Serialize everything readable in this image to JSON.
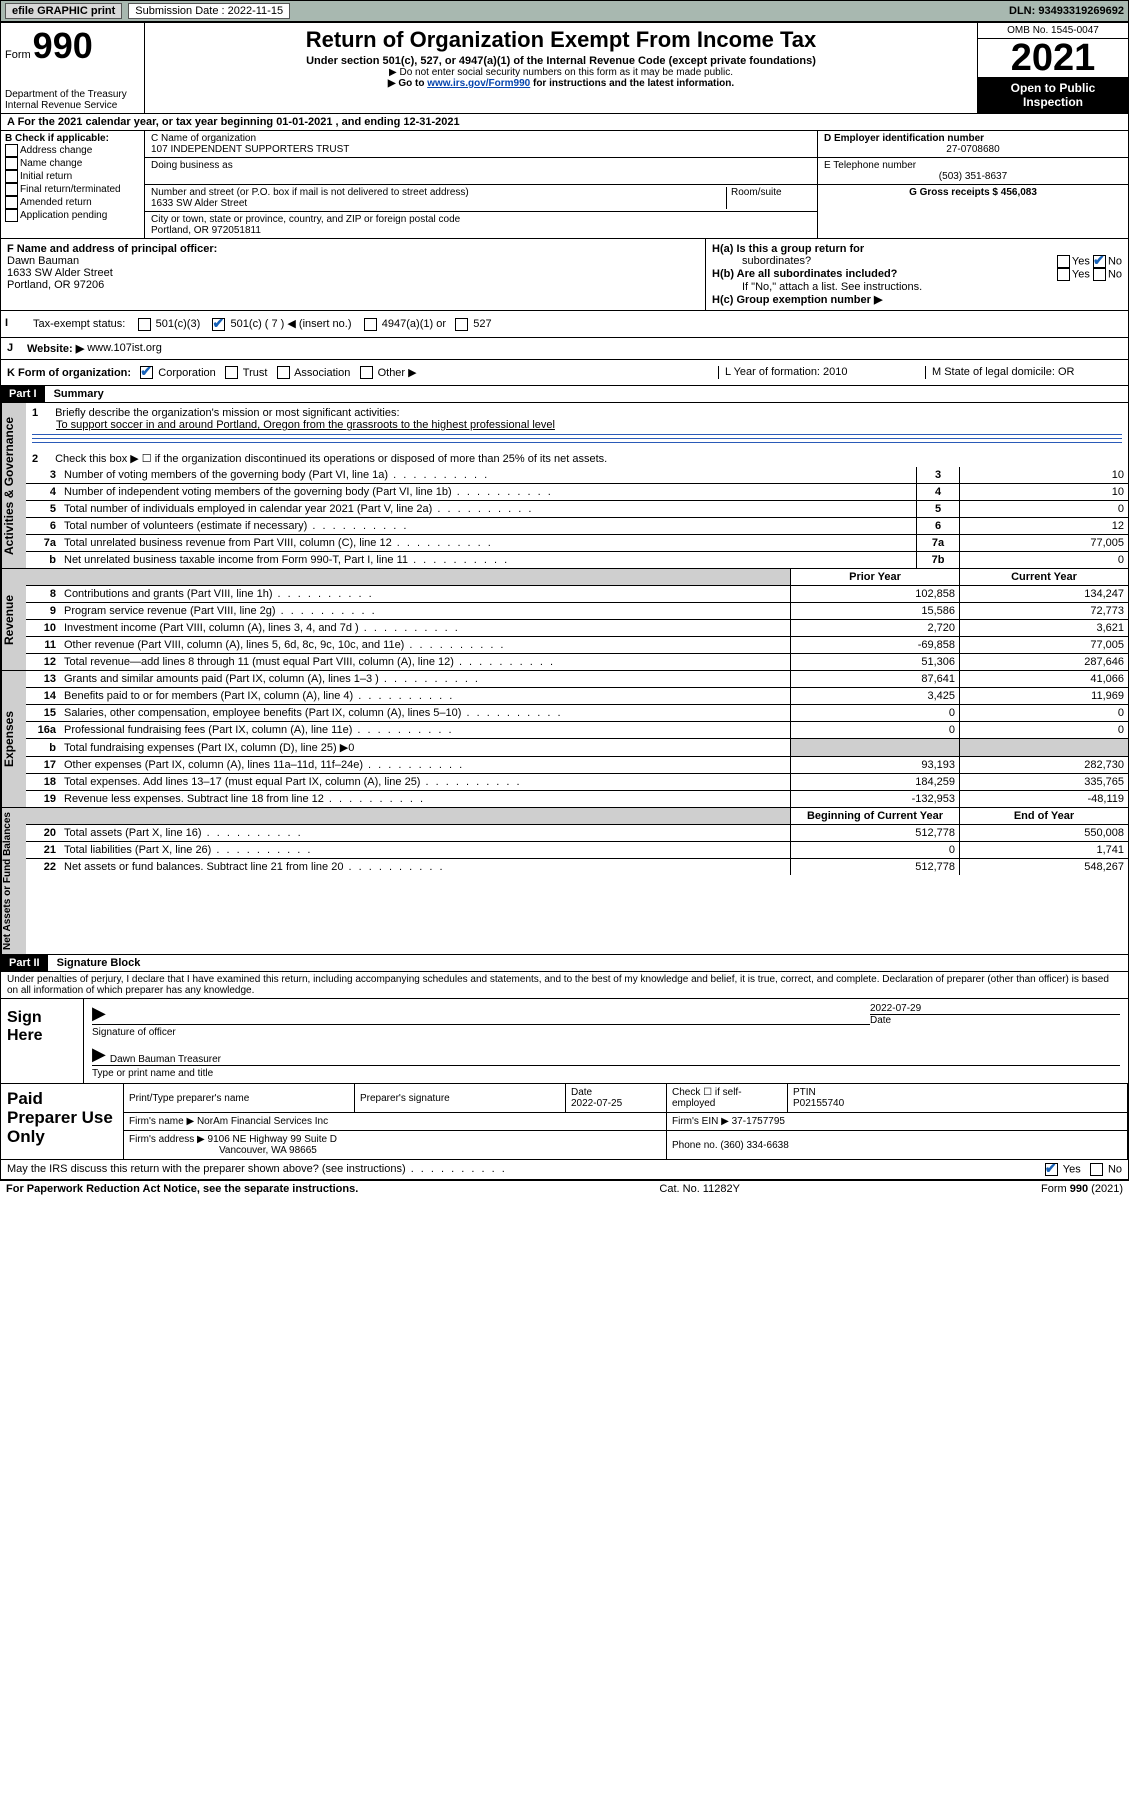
{
  "topbar": {
    "efile": "efile GRAPHIC print",
    "submission_label": "Submission Date : 2022-11-15",
    "dln": "DLN: 93493319269692"
  },
  "header": {
    "form_word": "Form",
    "form_num": "990",
    "dept": "Department of the Treasury",
    "irs": "Internal Revenue Service",
    "title": "Return of Organization Exempt From Income Tax",
    "sub1": "Under section 501(c), 527, or 4947(a)(1) of the Internal Revenue Code (except private foundations)",
    "sub2": "▶ Do not enter social security numbers on this form as it may be made public.",
    "sub3_pre": "▶ Go to ",
    "sub3_link": "www.irs.gov/Form990",
    "sub3_post": " for instructions and the latest information.",
    "omb": "OMB No. 1545-0047",
    "year": "2021",
    "otp": "Open to Public Inspection"
  },
  "row_a": "A For the 2021 calendar year, or tax year beginning 01-01-2021    , and ending 12-31-2021",
  "col_b": {
    "title": "B Check if applicable:",
    "opts": [
      "Address change",
      "Name change",
      "Initial return",
      "Final return/terminated",
      "Amended return",
      "Application pending"
    ]
  },
  "col_c": {
    "c_label": "C Name of organization",
    "c_name": "107 INDEPENDENT SUPPORTERS TRUST",
    "dba_label": "Doing business as",
    "addr_label": "Number and street (or P.O. box if mail is not delivered to street address)",
    "room_label": "Room/suite",
    "addr": "1633 SW Alder Street",
    "city_label": "City or town, state or province, country, and ZIP or foreign postal code",
    "city": "Portland, OR  972051811"
  },
  "col_de": {
    "d_label": "D Employer identification number",
    "d_val": "27-0708680",
    "e_label": "E Telephone number",
    "e_val": "(503) 351-8637",
    "g_label": "G Gross receipts $ 456,083"
  },
  "fj": {
    "f_label": "F  Name and address of principal officer:",
    "f_name": "Dawn Bauman",
    "f_addr1": "1633 SW Alder Street",
    "f_addr2": "Portland, OR  97206",
    "i_label": "Tax-exempt status:",
    "i_opts": {
      "a": "501(c)(3)",
      "b": "501(c) ( 7 ) ◀ (insert no.)",
      "c": "4947(a)(1) or",
      "d": "527"
    },
    "j_label": "Website: ▶",
    "j_val": "www.107ist.org",
    "ha_label": "H(a)  Is this a group return for",
    "ha_sub": "subordinates?",
    "hb_label": "H(b)  Are all subordinates included?",
    "hb_note": "If \"No,\" attach a list. See instructions.",
    "hc_label": "H(c)  Group exemption number ▶",
    "yes": "Yes",
    "no": "No"
  },
  "row_k": {
    "k_label": "K Form of organization:",
    "opts": [
      "Corporation",
      "Trust",
      "Association",
      "Other ▶"
    ],
    "l_label": "L Year of formation: 2010",
    "m_label": "M State of legal domicile: OR"
  },
  "part1": {
    "label": "Part I",
    "title": "Summary",
    "l1a": "Briefly describe the organization's mission or most significant activities:",
    "l1b": "To support soccer in and around Portland, Oregon from the grassroots to the highest professional level",
    "l2": "Check this box ▶ ☐  if the organization discontinued its operations or disposed of more than 25% of its net assets.",
    "lines_ag": [
      {
        "n": "3",
        "t": "Number of voting members of the governing body (Part VI, line 1a)",
        "box": "3",
        "v": "10"
      },
      {
        "n": "4",
        "t": "Number of independent voting members of the governing body (Part VI, line 1b)",
        "box": "4",
        "v": "10"
      },
      {
        "n": "5",
        "t": "Total number of individuals employed in calendar year 2021 (Part V, line 2a)",
        "box": "5",
        "v": "0"
      },
      {
        "n": "6",
        "t": "Total number of volunteers (estimate if necessary)",
        "box": "6",
        "v": "12"
      },
      {
        "n": "7a",
        "t": "Total unrelated business revenue from Part VIII, column (C), line 12",
        "box": "7a",
        "v": "77,005"
      },
      {
        "n": "b",
        "t": "Net unrelated business taxable income from Form 990-T, Part I, line 11",
        "box": "7b",
        "v": "0"
      }
    ],
    "hdr_prior": "Prior Year",
    "hdr_curr": "Current Year",
    "revenue": [
      {
        "n": "8",
        "t": "Contributions and grants (Part VIII, line 1h)",
        "p": "102,858",
        "c": "134,247"
      },
      {
        "n": "9",
        "t": "Program service revenue (Part VIII, line 2g)",
        "p": "15,586",
        "c": "72,773"
      },
      {
        "n": "10",
        "t": "Investment income (Part VIII, column (A), lines 3, 4, and 7d )",
        "p": "2,720",
        "c": "3,621"
      },
      {
        "n": "11",
        "t": "Other revenue (Part VIII, column (A), lines 5, 6d, 8c, 9c, 10c, and 11e)",
        "p": "-69,858",
        "c": "77,005"
      },
      {
        "n": "12",
        "t": "Total revenue—add lines 8 through 11 (must equal Part VIII, column (A), line 12)",
        "p": "51,306",
        "c": "287,646"
      }
    ],
    "expenses": [
      {
        "n": "13",
        "t": "Grants and similar amounts paid (Part IX, column (A), lines 1–3 )",
        "p": "87,641",
        "c": "41,066"
      },
      {
        "n": "14",
        "t": "Benefits paid to or for members (Part IX, column (A), line 4)",
        "p": "3,425",
        "c": "11,969"
      },
      {
        "n": "15",
        "t": "Salaries, other compensation, employee benefits (Part IX, column (A), lines 5–10)",
        "p": "0",
        "c": "0"
      },
      {
        "n": "16a",
        "t": "Professional fundraising fees (Part IX, column (A), line 11e)",
        "p": "0",
        "c": "0"
      },
      {
        "n": "b",
        "t_html": "Total fundraising expenses (Part IX, column (D), line 25) ▶0",
        "shade": true
      },
      {
        "n": "17",
        "t": "Other expenses (Part IX, column (A), lines 11a–11d, 11f–24e)",
        "p": "93,193",
        "c": "282,730"
      },
      {
        "n": "18",
        "t": "Total expenses. Add lines 13–17 (must equal Part IX, column (A), line 25)",
        "p": "184,259",
        "c": "335,765"
      },
      {
        "n": "19",
        "t": "Revenue less expenses. Subtract line 18 from line 12",
        "p": "-132,953",
        "c": "-48,119"
      }
    ],
    "hdr_beg": "Beginning of Current Year",
    "hdr_end": "End of Year",
    "netassets": [
      {
        "n": "20",
        "t": "Total assets (Part X, line 16)",
        "p": "512,778",
        "c": "550,008"
      },
      {
        "n": "21",
        "t": "Total liabilities (Part X, line 26)",
        "p": "0",
        "c": "1,741"
      },
      {
        "n": "22",
        "t": "Net assets or fund balances. Subtract line 21 from line 20",
        "p": "512,778",
        "c": "548,267"
      }
    ],
    "vtab_ag": "Activities & Governance",
    "vtab_rev": "Revenue",
    "vtab_exp": "Expenses",
    "vtab_na": "Net Assets or Fund Balances"
  },
  "part2": {
    "label": "Part II",
    "title": "Signature Block",
    "pen": "Under penalties of perjury, I declare that I have examined this return, including accompanying schedules and statements, and to the best of my knowledge and belief, it is true, correct, and complete. Declaration of preparer (other than officer) is based on all information of which preparer has any knowledge.",
    "sign_here": "Sign Here",
    "sig_officer": "Signature of officer",
    "sig_date": "2022-07-29",
    "date_lbl": "Date",
    "sig_name": "Dawn Bauman  Treasurer",
    "sig_name_lbl": "Type or print name and title",
    "paid": "Paid Preparer Use Only",
    "p_name_lbl": "Print/Type preparer's name",
    "p_sig_lbl": "Preparer's signature",
    "p_date_lbl": "Date",
    "p_date": "2022-07-25",
    "p_check": "Check ☐ if self-employed",
    "ptin_lbl": "PTIN",
    "ptin": "P02155740",
    "firm_name_lbl": "Firm's name    ▶",
    "firm_name": "NorAm Financial Services Inc",
    "firm_ein_lbl": "Firm's EIN ▶",
    "firm_ein": "37-1757795",
    "firm_addr_lbl": "Firm's address ▶",
    "firm_addr1": "9106 NE Highway 99 Suite D",
    "firm_addr2": "Vancouver, WA  98665",
    "phone_lbl": "Phone no. (360) 334-6638",
    "may_irs": "May the IRS discuss this return with the preparer shown above? (see instructions)"
  },
  "footer": {
    "pra": "For Paperwork Reduction Act Notice, see the separate instructions.",
    "cat": "Cat. No. 11282Y",
    "form": "Form 990 (2021)"
  }
}
